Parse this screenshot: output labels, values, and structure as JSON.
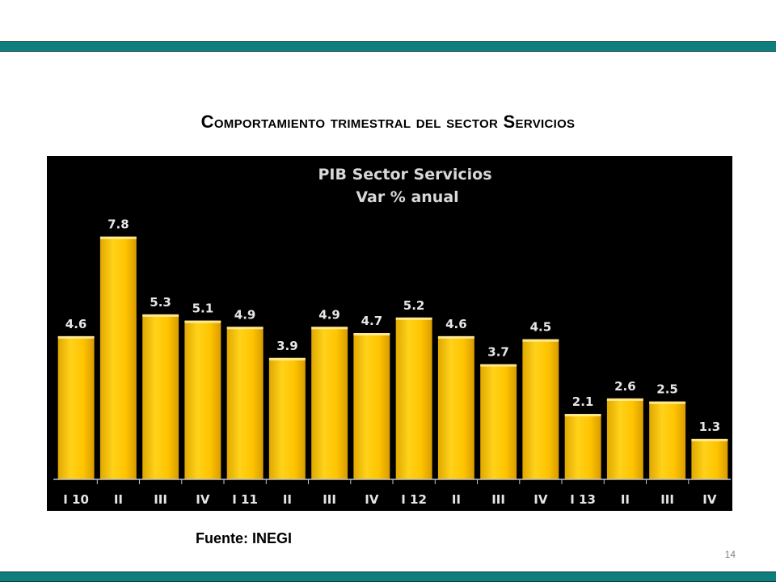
{
  "slide": {
    "title": "Comportamiento trimestral del sector Servicios",
    "source": "Fuente: INEGI",
    "page_number": "14",
    "band_color": "#0e7f7c"
  },
  "chart_data": {
    "type": "bar",
    "title": "PIB Sector Servicios",
    "subtitle": "Var % anual",
    "categories": [
      "I 10",
      "II",
      "III",
      "IV",
      "I 11",
      "II",
      "III",
      "IV",
      "I 12",
      "II",
      "III",
      "IV",
      "I 13",
      "II",
      "III",
      "IV"
    ],
    "values": [
      4.6,
      7.8,
      5.3,
      5.1,
      4.9,
      3.9,
      4.9,
      4.7,
      5.2,
      4.6,
      3.7,
      4.5,
      2.1,
      2.6,
      2.5,
      1.3
    ],
    "data_labels": [
      "4.6",
      "7.8",
      "5.3",
      "5.1",
      "4.9",
      "3.9",
      "4.9",
      "4.7",
      "5.2",
      "4.6",
      "3.7",
      "4.5",
      "2.1",
      "2.6",
      "2.5",
      "1.3"
    ],
    "ylim": [
      0,
      8.7
    ],
    "grid": false,
    "bar_color": "#ffc000",
    "background": "#000000"
  }
}
